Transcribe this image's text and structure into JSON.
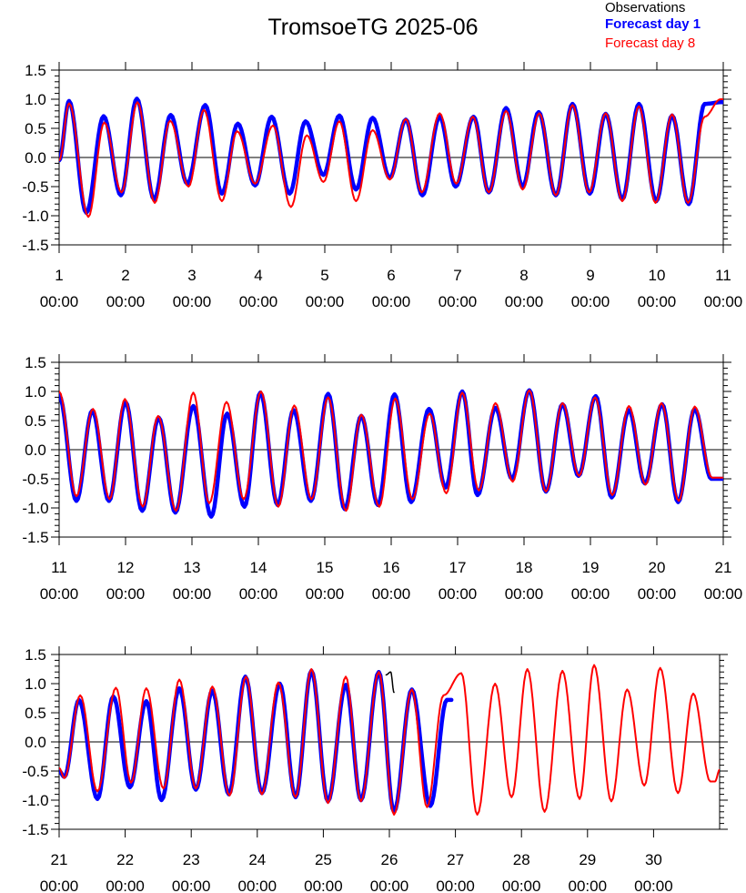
{
  "title": "TromsoeTG 2025-06",
  "legend": [
    {
      "name": "Observations",
      "color": "#000000"
    },
    {
      "name": "Forecast day 1",
      "color": "#0000ff"
    },
    {
      "name": "Forecast day 8",
      "color": "#ff0000"
    }
  ],
  "colors": {
    "observations": "#000000",
    "forecast_day1": "#0000ff",
    "forecast_day8": "#ff0000"
  },
  "chart_data": [
    {
      "type": "line",
      "x_range_days": [
        1,
        11
      ],
      "ylim": [
        -1.5,
        1.5
      ],
      "yticks": [
        "1.5",
        "1.0",
        "0.5",
        "0.0",
        "-0.5",
        "-1.0",
        "-1.5"
      ],
      "xticks": [
        {
          "day": "1",
          "time": "00:00"
        },
        {
          "day": "2",
          "time": "00:00"
        },
        {
          "day": "3",
          "time": "00:00"
        },
        {
          "day": "4",
          "time": "00:00"
        },
        {
          "day": "5",
          "time": "00:00"
        },
        {
          "day": "6",
          "time": "00:00"
        },
        {
          "day": "7",
          "time": "00:00"
        },
        {
          "day": "8",
          "time": "00:00"
        },
        {
          "day": "9",
          "time": "00:00"
        },
        {
          "day": "10",
          "time": "00:00"
        },
        {
          "day": "11",
          "time": "00:00"
        }
      ],
      "series": [
        {
          "name": "Forecast day 1",
          "x": [
            1.0,
            1.15,
            1.41,
            1.67,
            1.93,
            2.17,
            2.43,
            2.68,
            2.93,
            3.2,
            3.45,
            3.69,
            3.95,
            4.2,
            4.47,
            4.71,
            4.98,
            5.22,
            5.47,
            5.72,
            5.98,
            6.22,
            6.47,
            6.73,
            6.97,
            7.24,
            7.47,
            7.73,
            7.98,
            8.22,
            8.48,
            8.73,
            8.99,
            9.23,
            9.48,
            9.73,
            9.99,
            10.23,
            10.48,
            10.72,
            10.98,
            11.0
          ],
          "y": [
            -0.05,
            0.97,
            -0.95,
            0.71,
            -0.65,
            1.01,
            -0.72,
            0.73,
            -0.45,
            0.9,
            -0.62,
            0.58,
            -0.48,
            0.7,
            -0.62,
            0.62,
            -0.3,
            0.72,
            -0.55,
            0.68,
            -0.35,
            0.65,
            -0.65,
            0.7,
            -0.5,
            0.7,
            -0.6,
            0.85,
            -0.5,
            0.78,
            -0.65,
            0.92,
            -0.62,
            0.75,
            -0.72,
            0.92,
            -0.75,
            0.72,
            -0.8,
            0.92,
            0.95,
            0.95
          ]
        },
        {
          "name": "Forecast day 8",
          "x": [
            1.0,
            1.15,
            1.44,
            1.68,
            1.94,
            2.18,
            2.44,
            2.67,
            2.95,
            3.18,
            3.45,
            3.68,
            3.95,
            4.22,
            4.49,
            4.73,
            4.98,
            5.22,
            5.47,
            5.72,
            5.98,
            6.22,
            6.46,
            6.73,
            6.98,
            7.23,
            7.47,
            7.73,
            7.98,
            8.23,
            8.48,
            8.73,
            8.98,
            9.23,
            9.48,
            9.73,
            9.98,
            10.23,
            10.47,
            10.72,
            10.96,
            11.0
          ],
          "y": [
            -0.05,
            0.93,
            -1.02,
            0.6,
            -0.6,
            0.95,
            -0.78,
            0.63,
            -0.5,
            0.82,
            -0.75,
            0.45,
            -0.45,
            0.55,
            -0.85,
            0.38,
            -0.42,
            0.62,
            -0.75,
            0.47,
            -0.38,
            0.66,
            -0.6,
            0.76,
            -0.45,
            0.7,
            -0.6,
            0.8,
            -0.55,
            0.76,
            -0.65,
            0.9,
            -0.6,
            0.76,
            -0.75,
            0.88,
            -0.78,
            0.74,
            -0.78,
            0.7,
            1.0,
            1.0
          ]
        }
      ]
    },
    {
      "type": "line",
      "x_range_days": [
        11,
        21
      ],
      "ylim": [
        -1.5,
        1.5
      ],
      "yticks": [
        "1.5",
        "1.0",
        "0.5",
        "0.0",
        "-0.5",
        "-1.0",
        "-1.5"
      ],
      "xticks": [
        {
          "day": "11",
          "time": "00:00"
        },
        {
          "day": "12",
          "time": "00:00"
        },
        {
          "day": "13",
          "time": "00:00"
        },
        {
          "day": "14",
          "time": "00:00"
        },
        {
          "day": "15",
          "time": "00:00"
        },
        {
          "day": "16",
          "time": "00:00"
        },
        {
          "day": "17",
          "time": "00:00"
        },
        {
          "day": "18",
          "time": "00:00"
        },
        {
          "day": "19",
          "time": "00:00"
        },
        {
          "day": "20",
          "time": "00:00"
        },
        {
          "day": "21",
          "time": "00:00"
        }
      ],
      "series": [
        {
          "name": "Forecast day 1",
          "x": [
            11.0,
            11.26,
            11.5,
            11.75,
            12.0,
            12.25,
            12.5,
            12.75,
            13.02,
            13.29,
            13.53,
            13.79,
            14.03,
            14.29,
            14.53,
            14.79,
            15.05,
            15.3,
            15.55,
            15.8,
            16.05,
            16.3,
            16.57,
            16.82,
            17.07,
            17.3,
            17.57,
            17.82,
            18.08,
            18.33,
            18.58,
            18.82,
            19.08,
            19.32,
            19.58,
            19.82,
            20.08,
            20.32,
            20.57,
            20.82,
            21.0
          ],
          "y": [
            0.93,
            -0.88,
            0.67,
            -0.88,
            0.82,
            -1.05,
            0.55,
            -1.08,
            0.75,
            -1.15,
            0.62,
            -0.98,
            0.98,
            -0.95,
            0.68,
            -0.88,
            0.96,
            -1.02,
            0.58,
            -0.95,
            0.95,
            -0.9,
            0.7,
            -0.65,
            1.0,
            -0.78,
            0.72,
            -0.5,
            1.02,
            -0.72,
            0.78,
            -0.45,
            0.92,
            -0.82,
            0.68,
            -0.58,
            0.78,
            -0.9,
            0.7,
            -0.5,
            -0.5
          ]
        },
        {
          "name": "Forecast day 8",
          "x": [
            11.0,
            11.26,
            11.51,
            11.76,
            11.99,
            12.26,
            12.49,
            12.76,
            13.02,
            13.26,
            13.52,
            13.78,
            14.04,
            14.3,
            14.54,
            14.8,
            15.05,
            15.32,
            15.55,
            15.82,
            16.06,
            16.32,
            16.58,
            16.83,
            17.07,
            17.32,
            17.57,
            17.83,
            18.08,
            18.33,
            18.58,
            18.83,
            19.07,
            19.33,
            19.58,
            19.83,
            20.07,
            20.33,
            20.57,
            20.83,
            21.0
          ],
          "y": [
            1.0,
            -0.8,
            0.7,
            -0.85,
            0.87,
            -0.98,
            0.58,
            -1.05,
            0.98,
            -0.92,
            0.82,
            -0.85,
            1.0,
            -0.98,
            0.76,
            -0.85,
            0.9,
            -1.05,
            0.6,
            -0.98,
            0.88,
            -0.85,
            0.62,
            -0.75,
            0.98,
            -0.7,
            0.8,
            -0.55,
            1.02,
            -0.72,
            0.8,
            -0.45,
            0.9,
            -0.78,
            0.75,
            -0.6,
            0.8,
            -0.88,
            0.74,
            -0.48,
            -0.48
          ]
        }
      ]
    },
    {
      "type": "line",
      "x_range_days": [
        21,
        31
      ],
      "ylim": [
        -1.5,
        1.5
      ],
      "yticks": [
        "1.5",
        "1.0",
        "0.5",
        "0.0",
        "-0.5",
        "-1.0",
        "-1.5"
      ],
      "xticks": [
        {
          "day": "21",
          "time": "00:00"
        },
        {
          "day": "22",
          "time": "00:00"
        },
        {
          "day": "23",
          "time": "00:00"
        },
        {
          "day": "24",
          "time": "00:00"
        },
        {
          "day": "25",
          "time": "00:00"
        },
        {
          "day": "26",
          "time": "00:00"
        },
        {
          "day": "27",
          "time": "00:00"
        },
        {
          "day": "28",
          "time": "00:00"
        },
        {
          "day": "29",
          "time": "00:00"
        },
        {
          "day": "30",
          "time": "00:00"
        }
      ],
      "series": [
        {
          "name": "Forecast day 1",
          "x": [
            21.0,
            21.08,
            21.3,
            21.58,
            21.82,
            22.07,
            22.32,
            22.55,
            22.82,
            23.07,
            23.32,
            23.57,
            23.82,
            24.07,
            24.34,
            24.58,
            24.82,
            25.07,
            25.34,
            25.57,
            25.84,
            26.07,
            26.34,
            26.62,
            26.87,
            26.94
          ],
          "y": [
            -0.5,
            -0.6,
            0.72,
            -0.98,
            0.78,
            -0.78,
            0.7,
            -1.0,
            0.92,
            -0.82,
            0.88,
            -0.9,
            1.12,
            -0.88,
            1.0,
            -0.95,
            1.22,
            -1.02,
            0.98,
            -1.0,
            1.2,
            -1.2,
            0.9,
            -1.1,
            0.72,
            0.72
          ]
        },
        {
          "name": "Forecast day 8",
          "x": [
            21.0,
            21.08,
            21.32,
            21.58,
            21.86,
            22.09,
            22.32,
            22.58,
            22.82,
            23.07,
            23.32,
            23.58,
            23.83,
            24.07,
            24.32,
            24.58,
            24.82,
            25.07,
            25.34,
            25.57,
            25.84,
            26.07,
            26.34,
            26.57,
            26.82,
            27.09,
            27.33,
            27.6,
            27.85,
            28.09,
            28.35,
            28.62,
            28.88,
            29.1,
            29.36,
            29.6,
            29.86,
            30.1,
            30.37,
            30.6,
            30.86,
            30.93,
            31.0
          ],
          "y": [
            -0.45,
            -0.62,
            0.8,
            -0.85,
            0.93,
            -0.7,
            0.92,
            -0.8,
            1.07,
            -0.8,
            0.95,
            -0.92,
            1.12,
            -0.9,
            1.02,
            -0.95,
            1.25,
            -1.05,
            1.12,
            -1.02,
            1.2,
            -1.25,
            0.9,
            -1.12,
            0.8,
            1.18,
            -1.25,
            1.0,
            -0.95,
            1.25,
            -1.2,
            1.22,
            -0.98,
            1.32,
            -1.02,
            0.9,
            -0.75,
            1.27,
            -0.88,
            0.83,
            -0.68,
            -0.68,
            -0.48
          ]
        },
        {
          "name": "Observations",
          "x": [
            25.95,
            26.02,
            26.07
          ],
          "y": [
            1.15,
            1.2,
            0.85
          ]
        }
      ]
    }
  ]
}
